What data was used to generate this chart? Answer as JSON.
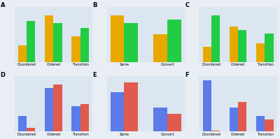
{
  "panel_A": {
    "categories": [
      "Disordered",
      "Ordered",
      "Transition"
    ],
    "gold": [
      20,
      55,
      30
    ],
    "green": [
      48,
      46,
      40
    ],
    "ylim": [
      0,
      65
    ]
  },
  "panel_B": {
    "categories": [
      "Same",
      "Convert"
    ],
    "gold": [
      55,
      33
    ],
    "green": [
      46,
      50
    ],
    "ylim": [
      0,
      65
    ]
  },
  "panel_C": {
    "categories": [
      "Disordered",
      "Ordered",
      "Transition"
    ],
    "gold": [
      18,
      42,
      22
    ],
    "green": [
      55,
      38,
      34
    ],
    "ylim": [
      0,
      65
    ]
  },
  "panel_D": {
    "categories": [
      "Disordered",
      "Ordered",
      "Transition"
    ],
    "blue": [
      8,
      22,
      13
    ],
    "red": [
      2,
      24,
      14
    ],
    "ylim": [
      0,
      28
    ]
  },
  "panel_E": {
    "categories": [
      "Same",
      "Convert"
    ],
    "blue": [
      20,
      12
    ],
    "red": [
      25,
      9
    ],
    "ylim": [
      0,
      28
    ]
  },
  "panel_F": {
    "categories": [
      "Disordered",
      "Ordered",
      "Transition"
    ],
    "blue": [
      26,
      12,
      8
    ],
    "red": [
      0.5,
      15,
      6
    ],
    "ylim": [
      0,
      28
    ]
  },
  "gold_color": "#E8A800",
  "green_color": "#22CC44",
  "blue_color": "#5B7BE8",
  "red_color": "#E05A4E",
  "bg_color": "#DCE6F0",
  "fig_bg_color": "#E8EEF4",
  "tick_fontsize": 3.5,
  "panel_label_fontsize": 6,
  "bar_width": 0.32
}
